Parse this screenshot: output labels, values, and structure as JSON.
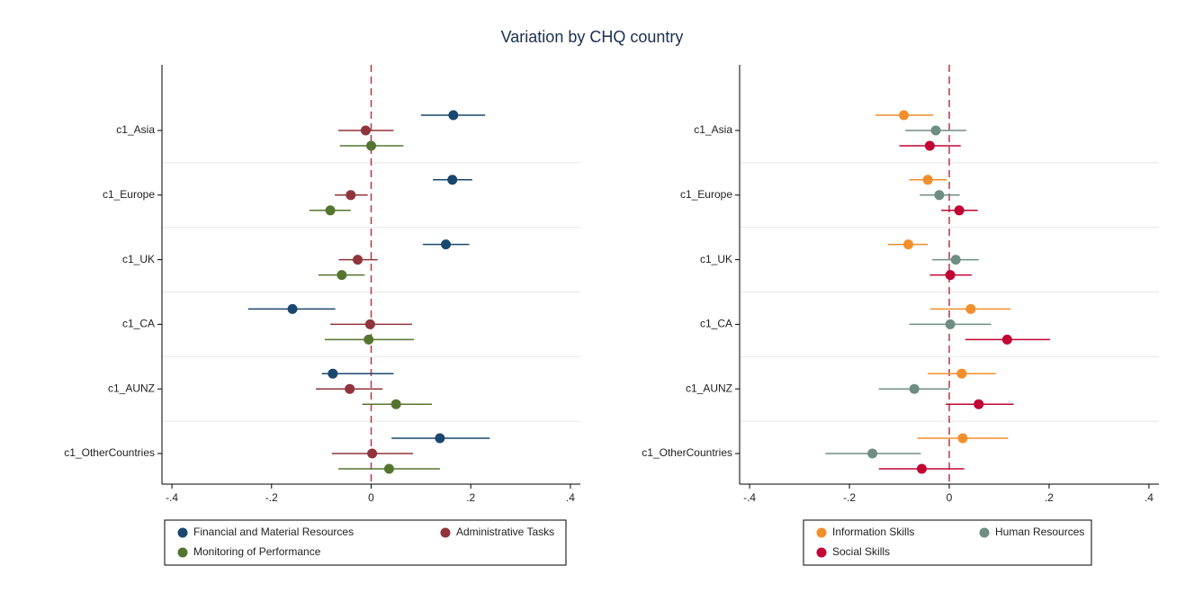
{
  "title": "Variation by CHQ country",
  "chart_data": [
    {
      "type": "dot-errorbar",
      "orientation": "horizontal",
      "categories": [
        "c1_Asia",
        "c1_Europe",
        "c1_UK",
        "c1_CA",
        "c1_AUNZ",
        "c1_OtherCountries"
      ],
      "xlim": [
        -0.42,
        0.42
      ],
      "xticks": [
        {
          "value": -0.4,
          "label": "-.4"
        },
        {
          "value": -0.2,
          "label": "-.2"
        },
        0,
        {
          "value": 0.2,
          "label": ".2"
        },
        {
          "value": 0.4,
          "label": ".4"
        }
      ],
      "xline": 0,
      "xline_color": "#b23a48",
      "series": [
        {
          "name": "Financial and Material Resources",
          "color": "#1a476f",
          "values": [
            0.165,
            0.163,
            0.15,
            -0.158,
            -0.077,
            0.138
          ],
          "lower": [
            0.1,
            0.124,
            0.104,
            -0.247,
            -0.099,
            0.041
          ],
          "upper": [
            0.229,
            0.203,
            0.197,
            -0.072,
            0.045,
            0.238
          ]
        },
        {
          "name": "Administrative Tasks",
          "color": "#90353b",
          "values": [
            -0.011,
            -0.041,
            -0.027,
            -0.002,
            -0.043,
            0.002
          ],
          "lower": [
            -0.066,
            -0.073,
            -0.065,
            -0.082,
            -0.111,
            -0.079
          ],
          "upper": [
            0.045,
            -0.007,
            0.013,
            0.082,
            0.023,
            0.084
          ]
        },
        {
          "name": "Monitoring of Performance",
          "color": "#55752f",
          "values": [
            0.0,
            -0.082,
            -0.059,
            -0.005,
            0.05,
            0.036
          ],
          "lower": [
            -0.063,
            -0.124,
            -0.106,
            -0.093,
            -0.018,
            -0.066
          ],
          "upper": [
            0.065,
            -0.041,
            -0.013,
            0.086,
            0.122,
            0.138
          ]
        }
      ]
    },
    {
      "type": "dot-errorbar",
      "orientation": "horizontal",
      "categories": [
        "c1_Asia",
        "c1_Europe",
        "c1_UK",
        "c1_CA",
        "c1_AUNZ",
        "c1_OtherCountries"
      ],
      "xlim": [
        -0.42,
        0.42
      ],
      "xticks": [
        {
          "value": -0.4,
          "label": "-.4"
        },
        {
          "value": -0.2,
          "label": "-.2"
        },
        0,
        {
          "value": 0.2,
          "label": ".2"
        },
        {
          "value": 0.4,
          "label": ".4"
        }
      ],
      "xline": 0,
      "xline_color": "#b23a48",
      "series": [
        {
          "name": "Information Skills",
          "color": "#f28e2b",
          "values": [
            -0.091,
            -0.043,
            -0.082,
            0.043,
            0.025,
            0.027
          ],
          "lower": [
            -0.148,
            -0.08,
            -0.123,
            -0.038,
            -0.043,
            -0.064
          ],
          "upper": [
            -0.032,
            -0.005,
            -0.043,
            0.123,
            0.093,
            0.118
          ]
        },
        {
          "name": "Human Resources",
          "color": "#6e8e84",
          "values": [
            -0.027,
            -0.02,
            0.013,
            0.002,
            -0.07,
            -0.154
          ],
          "lower": [
            -0.088,
            -0.059,
            -0.034,
            -0.08,
            -0.141,
            -0.248
          ],
          "upper": [
            0.034,
            0.021,
            0.059,
            0.084,
            0.0,
            -0.057
          ]
        },
        {
          "name": "Social Skills",
          "color": "#c10534",
          "values": [
            -0.039,
            0.02,
            0.002,
            0.116,
            0.059,
            -0.055
          ],
          "lower": [
            -0.1,
            -0.016,
            -0.039,
            0.032,
            -0.007,
            -0.141
          ],
          "upper": [
            0.023,
            0.057,
            0.045,
            0.202,
            0.129,
            0.03
          ]
        }
      ]
    }
  ]
}
